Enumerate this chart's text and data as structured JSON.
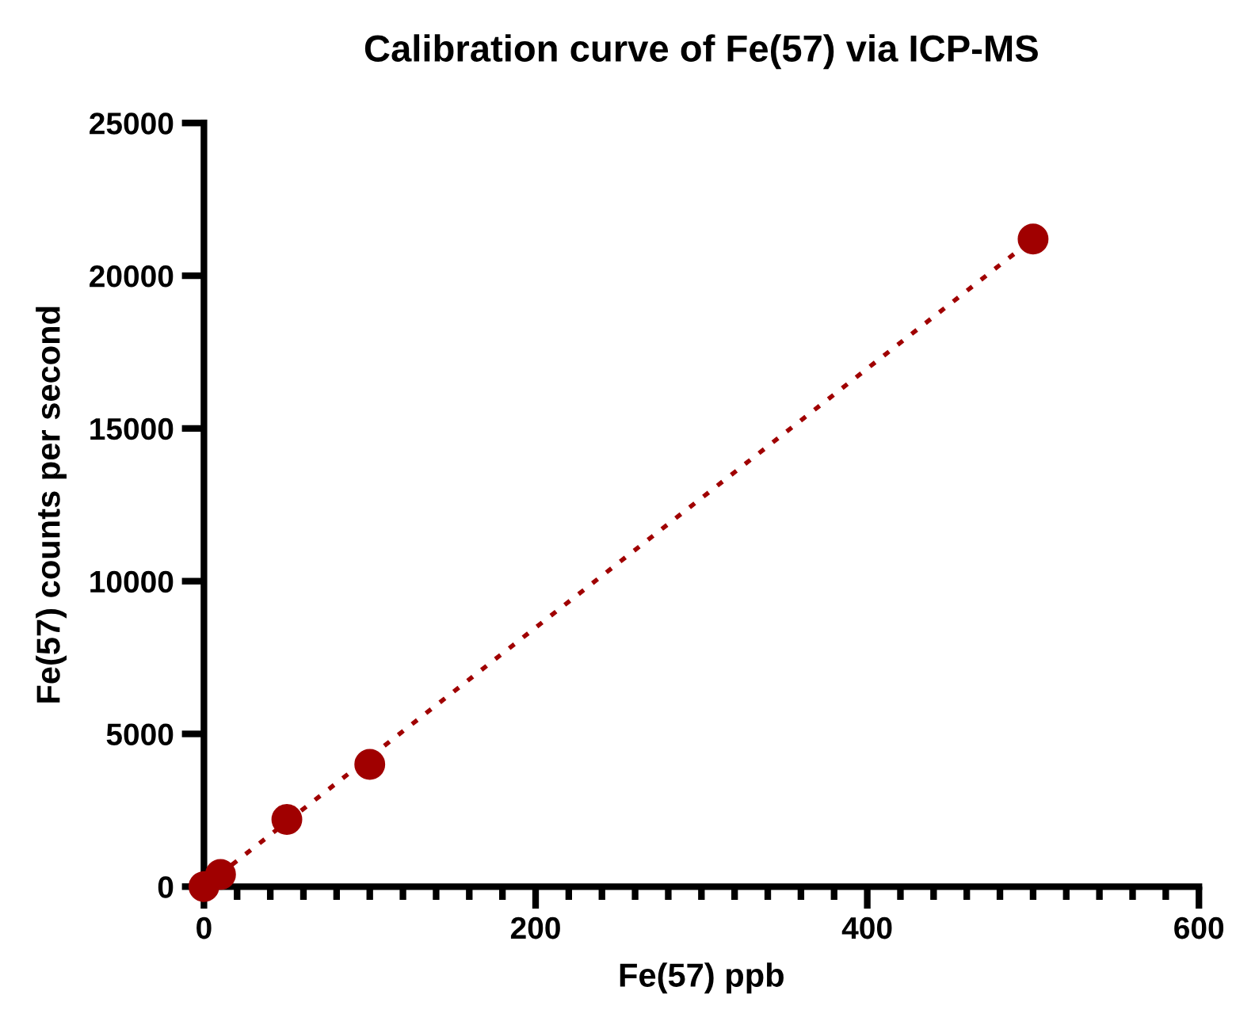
{
  "chart_data": {
    "type": "scatter",
    "title": "Calibration curve of Fe(57) via ICP-MS",
    "xlabel": "Fe(57) ppb",
    "ylabel": "Fe(57) counts per second",
    "series": [
      {
        "type": "line",
        "color": "#a00000",
        "line_style": "dotted",
        "marker": "none",
        "x": [
          0,
          500
        ],
        "values": [
          0,
          21200
        ]
      },
      {
        "color": "#a00000",
        "marker": "circle",
        "x": [
          0,
          10,
          50,
          100,
          500
        ],
        "values": [
          0,
          400,
          2200,
          4000,
          21200
        ]
      }
    ],
    "xlim": [
      0,
      600
    ],
    "xticks": [
      0,
      200,
      400,
      600
    ],
    "ylim": [
      0,
      25000
    ],
    "yticks": [
      0,
      5000,
      10000,
      15000,
      20000,
      25000
    ],
    "grid": false
  }
}
